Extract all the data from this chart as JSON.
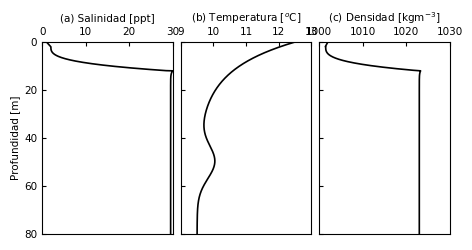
{
  "title_a": "(a) Salinidad [ppt]",
  "title_b": "(b) Temperatura [$^{o}$C]",
  "title_c": "(c) Densidad [kgm$^{-3}$]",
  "ylabel": "Profundidad [m]",
  "sal_xlim": [
    0,
    30
  ],
  "sal_xticks": [
    0,
    10,
    20,
    30
  ],
  "temp_xlim": [
    9,
    13
  ],
  "temp_xticks": [
    9,
    10,
    11,
    12,
    13
  ],
  "dens_xlim": [
    1000,
    1030
  ],
  "dens_xticks": [
    1000,
    1010,
    1020,
    1030
  ],
  "yticks": [
    0,
    20,
    40,
    60,
    80
  ],
  "line_color": "#000000",
  "line_width": 1.2,
  "bg_color": "#ffffff",
  "fontsize": 7.5
}
